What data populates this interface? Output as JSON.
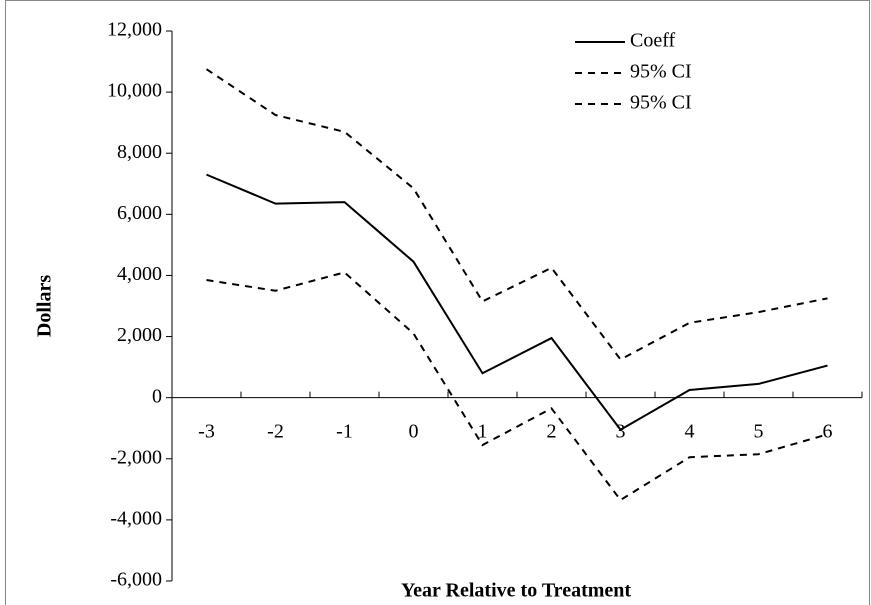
{
  "chart_data": {
    "type": "line",
    "x_label": "Year Relative to Treatment",
    "y_label": "Dollars",
    "categories": [
      "-3",
      "-2",
      "-1",
      "0",
      "1",
      "2",
      "3",
      "4",
      "5",
      "6"
    ],
    "series": [
      {
        "name": "Coeff",
        "color": "#000000",
        "line_style": "solid",
        "values": [
          7300,
          6350,
          6400,
          4450,
          800,
          1950,
          -1050,
          250,
          450,
          1050
        ]
      },
      {
        "name": "95% CI",
        "color": "#000000",
        "line_style": "dashed",
        "values": [
          10750,
          9250,
          8700,
          6850,
          3150,
          4250,
          1250,
          2450,
          2800,
          3250
        ]
      },
      {
        "name": "95% CI",
        "color": "#000000",
        "line_style": "dashed",
        "values": [
          3850,
          3500,
          4100,
          2100,
          -1550,
          -350,
          -3350,
          -1950,
          -1850,
          -1200
        ]
      }
    ],
    "ylim": [
      -6000,
      12000
    ],
    "yticks": [
      {
        "value": -6000,
        "label": "-6,000"
      },
      {
        "value": -4000,
        "label": "-4,000"
      },
      {
        "value": -2000,
        "label": "-2,000"
      },
      0,
      {
        "value": 2000,
        "label": "2,000"
      },
      {
        "value": 4000,
        "label": "4,000"
      },
      {
        "value": 6000,
        "label": "6,000"
      },
      {
        "value": 8000,
        "label": "8,000"
      },
      {
        "value": 10000,
        "label": "10,000"
      },
      {
        "value": 12000,
        "label": "12,000"
      }
    ],
    "grid": false,
    "legend": "upper right"
  }
}
